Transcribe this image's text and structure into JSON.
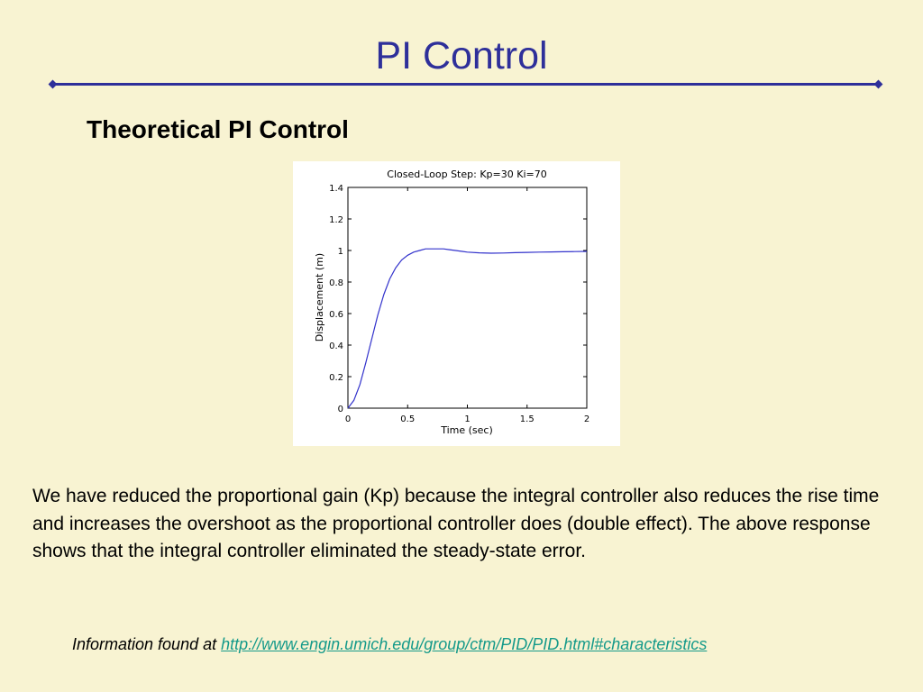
{
  "slide": {
    "title": "PI Control",
    "subtitle": "Theoretical PI Control",
    "body": "We have reduced the proportional gain (Kp) because the integral controller also reduces the rise time and increases the overshoot as the proportional controller does (double effect). The above response shows that the integral controller eliminated the steady-state error.",
    "info_prefix": "Information found at ",
    "info_link": "http://www.engin.umich.edu/group/ctm/PID/PID.html#characteristics"
  },
  "colors": {
    "background": "#f8f3d2",
    "title": "#2e2f9a",
    "link": "#159a8a",
    "line": "#3333cc"
  },
  "chart_data": {
    "type": "line",
    "title": "Closed-Loop Step: Kp=30 Ki=70",
    "xlabel": "Time (sec)",
    "ylabel": "Displacement (m)",
    "xlim": [
      0,
      2
    ],
    "ylim": [
      0,
      1.4
    ],
    "xticks": [
      "0",
      "0.5",
      "1",
      "1.5",
      "2"
    ],
    "yticks": [
      "0",
      "0.2",
      "0.4",
      "0.6",
      "0.8",
      "1",
      "1.2",
      "1.4"
    ],
    "grid": false,
    "series": [
      {
        "x": [
          0,
          0.05,
          0.1,
          0.15,
          0.2,
          0.25,
          0.3,
          0.35,
          0.4,
          0.45,
          0.5,
          0.55,
          0.6,
          0.65,
          0.7,
          0.75,
          0.8,
          0.85,
          0.9,
          0.95,
          1.0,
          1.1,
          1.2,
          1.3,
          1.4,
          1.5,
          1.6,
          1.7,
          1.8,
          1.9,
          2.0
        ],
        "y": [
          0,
          0.05,
          0.15,
          0.29,
          0.44,
          0.59,
          0.72,
          0.82,
          0.89,
          0.94,
          0.97,
          0.99,
          1.0,
          1.01,
          1.01,
          1.01,
          1.01,
          1.005,
          1.0,
          0.995,
          0.99,
          0.985,
          0.983,
          0.984,
          0.986,
          0.988,
          0.99,
          0.991,
          0.992,
          0.993,
          0.994
        ]
      }
    ]
  }
}
